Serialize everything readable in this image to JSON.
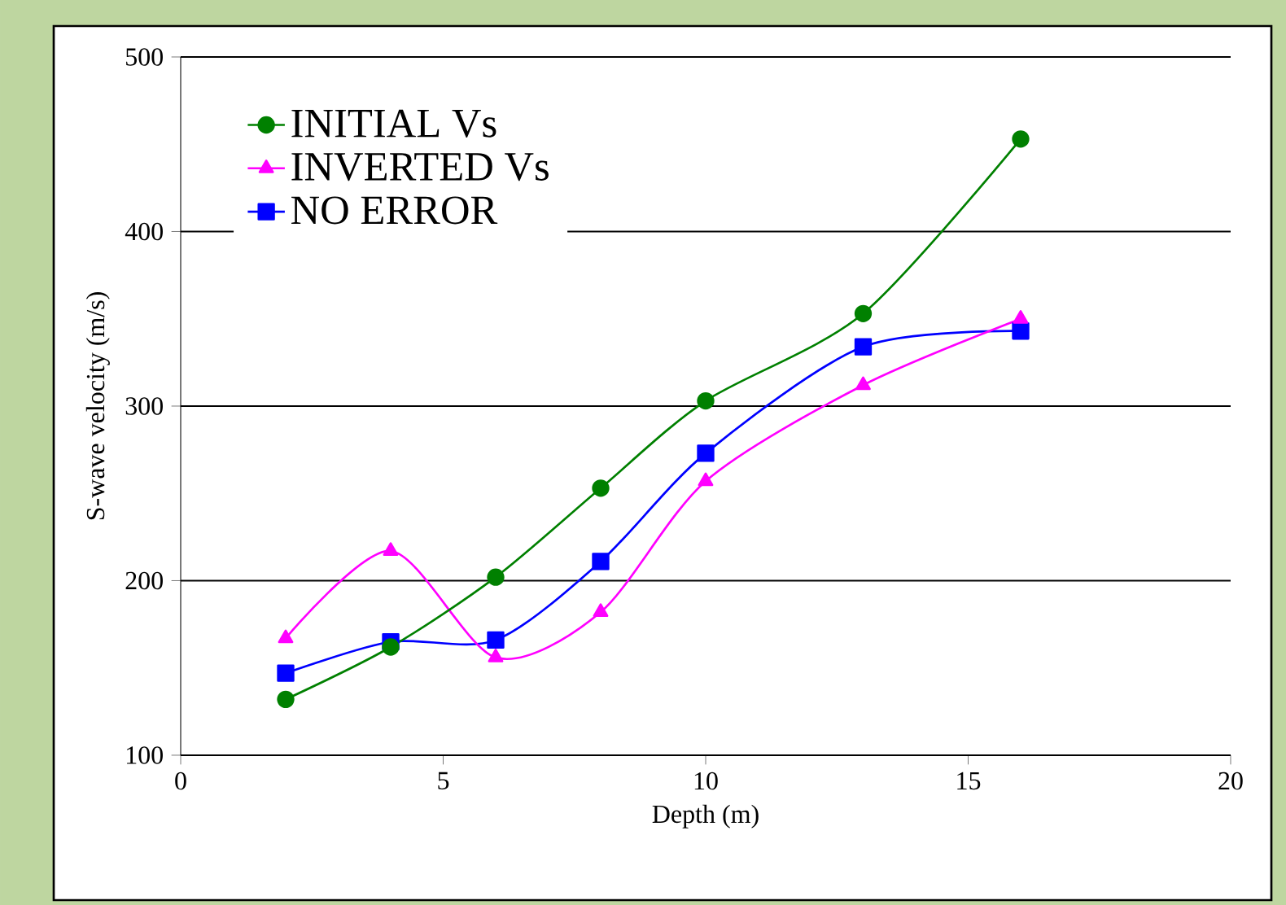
{
  "chart_data": {
    "type": "line",
    "xlabel": "Depth (m)",
    "ylabel": "S-wave velocity (m/s)",
    "xlim": [
      0,
      20
    ],
    "ylim": [
      100,
      500
    ],
    "xticks": [
      0,
      5,
      10,
      15,
      20
    ],
    "yticks": [
      100,
      200,
      300,
      400,
      500
    ],
    "grid": "y",
    "legend": "top left",
    "x": [
      2,
      4,
      6,
      8,
      10,
      13,
      16
    ],
    "series": [
      {
        "name": "INITIAL Vs",
        "color": "#008000",
        "marker": "circle",
        "values": [
          132,
          162,
          202,
          253,
          303,
          353,
          453
        ]
      },
      {
        "name": "INVERTED Vs",
        "color": "#ff00ff",
        "marker": "triangle",
        "values": [
          167,
          217,
          156,
          182,
          257,
          312,
          350
        ]
      },
      {
        "name": "NO ERROR",
        "color": "#0000ff",
        "marker": "square",
        "values": [
          147,
          165,
          166,
          211,
          273,
          334,
          343
        ]
      }
    ]
  }
}
